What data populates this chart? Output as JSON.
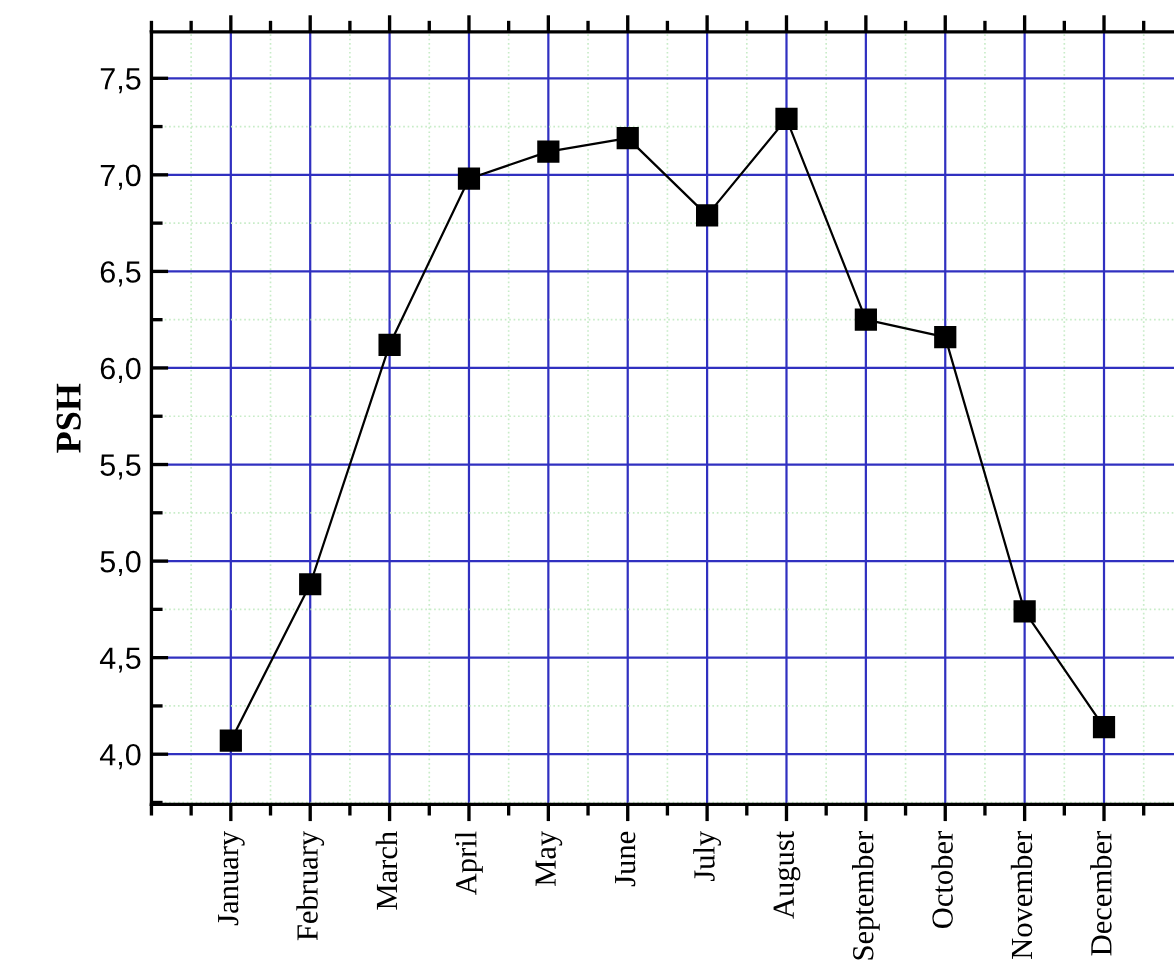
{
  "chart_data": {
    "type": "line",
    "ylabel": "PSH",
    "categories": [
      "January",
      "February",
      "March",
      "April",
      "May",
      "June",
      "July",
      "August",
      "September",
      "October",
      "November",
      "December"
    ],
    "series": [
      {
        "color": "#000000",
        "values": [
          4.07,
          4.88,
          6.12,
          6.98,
          7.12,
          7.19,
          6.79,
          7.29,
          6.25,
          6.16,
          4.74,
          4.14
        ]
      }
    ],
    "ylim": [
      3.74,
      7.74
    ],
    "yticks": [
      {
        "value": 4.0,
        "label": "4,0"
      },
      {
        "value": 4.5,
        "label": "4,5"
      },
      {
        "value": 5.0,
        "label": "5,0"
      },
      {
        "value": 5.5,
        "label": "5,5"
      },
      {
        "value": 6.0,
        "label": "6,0"
      },
      {
        "value": 6.5,
        "label": "6,5"
      },
      {
        "value": 7.0,
        "label": "7,0"
      },
      {
        "value": 7.5,
        "label": "7,5"
      }
    ],
    "grid": true,
    "marker": "square",
    "line_style": "solid"
  }
}
